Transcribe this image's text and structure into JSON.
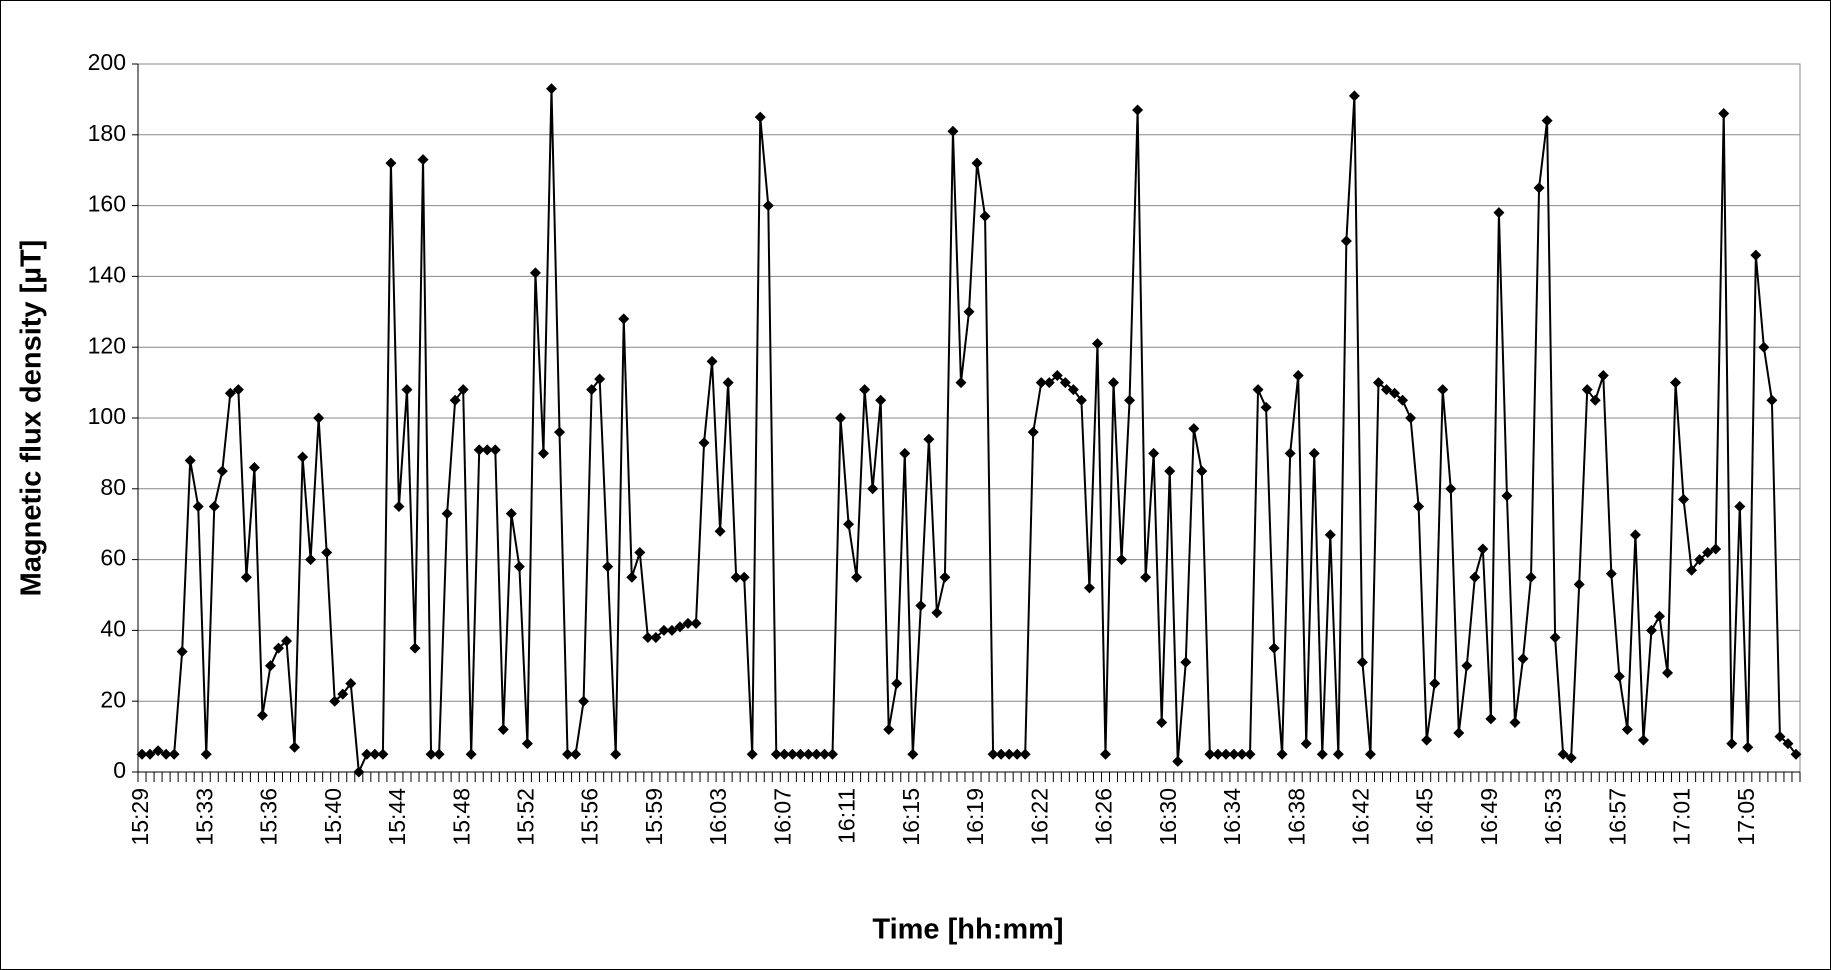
{
  "chart_data": {
    "type": "line",
    "x_label": "Time [hh:mm]",
    "y_label": "Magnetic flux density [µT]",
    "color": "#000000",
    "marker": "diamond",
    "grid": true,
    "ylim": [
      0,
      200
    ],
    "yticks": [
      0,
      20,
      40,
      60,
      80,
      100,
      120,
      140,
      160,
      180,
      200
    ],
    "categories": [
      "15:29",
      null,
      null,
      null,
      null,
      null,
      null,
      null,
      "15:33",
      null,
      null,
      null,
      null,
      null,
      null,
      null,
      "15:36",
      null,
      null,
      null,
      null,
      null,
      null,
      null,
      "15:40",
      null,
      null,
      null,
      null,
      null,
      null,
      null,
      "15:44",
      null,
      null,
      null,
      null,
      null,
      null,
      null,
      "15:48",
      null,
      null,
      null,
      null,
      null,
      null,
      null,
      "15:52",
      null,
      null,
      null,
      null,
      null,
      null,
      null,
      "15:56",
      null,
      null,
      null,
      null,
      null,
      null,
      null,
      "15:59",
      null,
      null,
      null,
      null,
      null,
      null,
      null,
      "16:03",
      null,
      null,
      null,
      null,
      null,
      null,
      null,
      "16:07",
      null,
      null,
      null,
      null,
      null,
      null,
      null,
      "16:11",
      null,
      null,
      null,
      null,
      null,
      null,
      null,
      "16:15",
      null,
      null,
      null,
      null,
      null,
      null,
      null,
      "16:19",
      null,
      null,
      null,
      null,
      null,
      null,
      null,
      "16:22",
      null,
      null,
      null,
      null,
      null,
      null,
      null,
      "16:26",
      null,
      null,
      null,
      null,
      null,
      null,
      null,
      "16:30",
      null,
      null,
      null,
      null,
      null,
      null,
      null,
      "16:34",
      null,
      null,
      null,
      null,
      null,
      null,
      null,
      "16:38",
      null,
      null,
      null,
      null,
      null,
      null,
      null,
      "16:42",
      null,
      null,
      null,
      null,
      null,
      null,
      null,
      "16:45",
      null,
      null,
      null,
      null,
      null,
      null,
      null,
      "16:49",
      null,
      null,
      null,
      null,
      null,
      null,
      null,
      "16:53",
      null,
      null,
      null,
      null,
      null,
      null,
      null,
      "16:57",
      null,
      null,
      null,
      null,
      null,
      null,
      null,
      "17:01",
      null,
      null,
      null,
      null,
      null,
      null,
      null,
      "17:05",
      null,
      null,
      null,
      null,
      null,
      null
    ],
    "values": [
      5,
      5,
      6,
      5,
      5,
      34,
      88,
      75,
      5,
      75,
      85,
      107,
      108,
      55,
      86,
      16,
      30,
      35,
      37,
      7,
      89,
      60,
      100,
      62,
      20,
      22,
      25,
      0,
      5,
      5,
      5,
      172,
      75,
      108,
      35,
      173,
      5,
      5,
      73,
      105,
      108,
      5,
      91,
      91,
      91,
      12,
      73,
      58,
      8,
      141,
      90,
      193,
      96,
      5,
      5,
      20,
      108,
      111,
      58,
      5,
      128,
      55,
      62,
      38,
      38,
      40,
      40,
      41,
      42,
      42,
      93,
      116,
      68,
      110,
      55,
      55,
      5,
      185,
      160,
      5,
      5,
      5,
      5,
      5,
      5,
      5,
      5,
      100,
      70,
      55,
      108,
      80,
      105,
      12,
      25,
      90,
      5,
      47,
      94,
      45,
      55,
      181,
      110,
      130,
      172,
      157,
      5,
      5,
      5,
      5,
      5,
      96,
      110,
      110,
      112,
      110,
      108,
      105,
      52,
      121,
      5,
      110,
      60,
      105,
      187,
      55,
      90,
      14,
      85,
      3,
      31,
      97,
      85,
      5,
      5,
      5,
      5,
      5,
      5,
      108,
      103,
      35,
      5,
      90,
      112,
      8,
      90,
      5,
      67,
      5,
      150,
      191,
      31,
      5,
      110,
      108,
      107,
      105,
      100,
      75,
      9,
      25,
      108,
      80,
      11,
      30,
      55,
      63,
      15,
      158,
      78,
      14,
      32,
      55,
      165,
      184,
      38,
      5,
      4,
      53,
      108,
      105,
      112,
      56,
      27,
      12,
      67,
      9,
      40,
      44,
      28,
      110,
      77,
      57,
      60,
      62,
      63,
      186,
      8,
      75,
      7,
      146,
      120,
      105,
      10,
      8,
      5
    ]
  }
}
